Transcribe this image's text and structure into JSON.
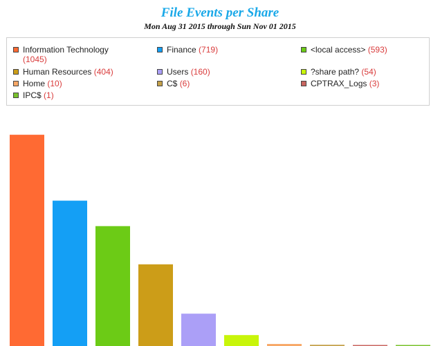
{
  "chart_data": {
    "type": "bar",
    "title": "File Events per Share",
    "subtitle": "Mon Aug 31 2015 through Sun Nov 01 2015",
    "categories": [
      "Information Technology",
      "Finance",
      "<local access>",
      "Human Resources",
      "Users",
      "?share path?",
      "Home",
      "C$",
      "CPTRAX_Logs",
      "IPC$"
    ],
    "values": [
      1045,
      719,
      593,
      404,
      160,
      54,
      10,
      6,
      3,
      1
    ],
    "colors": [
      "#ff6a33",
      "#149ff5",
      "#6ccb16",
      "#cc9d18",
      "#ab9ff7",
      "#c8f50a",
      "#f7a867",
      "#c4a049",
      "#c86560",
      "#79c22c"
    ],
    "legend": [
      {
        "label": "Information Technology",
        "value": "(1045)",
        "color": "#ff6a33"
      },
      {
        "label": "Finance",
        "value": "(719)",
        "color": "#149ff5"
      },
      {
        "label": "<local access>",
        "value": "(593)",
        "color": "#6ccb16"
      },
      {
        "label": "Human Resources",
        "value": "(404)",
        "color": "#cc9d18"
      },
      {
        "label": "Users",
        "value": "(160)",
        "color": "#ab9ff7"
      },
      {
        "label": "?share path?",
        "value": "(54)",
        "color": "#c8f50a"
      },
      {
        "label": "Home",
        "value": "(10)",
        "color": "#f7a867"
      },
      {
        "label": "C$",
        "value": "(6)",
        "color": "#c4a049"
      },
      {
        "label": "CPTRAX_Logs",
        "value": "(3)",
        "color": "#c86560"
      },
      {
        "label": "IPC$",
        "value": "(1)",
        "color": "#79c22c"
      }
    ],
    "legend_placement": "top",
    "grid": false,
    "ylim": [
      0,
      1165
    ]
  }
}
